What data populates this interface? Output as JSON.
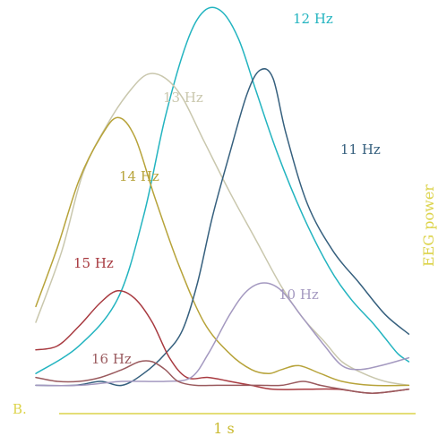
{
  "chart_data": {
    "type": "line",
    "panel_label": "B.",
    "ylabel": "EEG power",
    "scale_bar_label": "1 s",
    "x_range": [
      0,
      1.77
    ],
    "y_range": [
      0,
      1.0
    ],
    "grid": false,
    "legend": "none",
    "series": [
      {
        "name": "12 Hz",
        "color": "#23b4c0",
        "points": [
          [
            0,
            0.07
          ],
          [
            0.2,
            0.14
          ],
          [
            0.38,
            0.26
          ],
          [
            0.5,
            0.47
          ],
          [
            0.6,
            0.72
          ],
          [
            0.7,
            0.91
          ],
          [
            0.78,
            0.99
          ],
          [
            0.86,
            0.99
          ],
          [
            0.94,
            0.92
          ],
          [
            1.02,
            0.79
          ],
          [
            1.12,
            0.63
          ],
          [
            1.24,
            0.47
          ],
          [
            1.36,
            0.34
          ],
          [
            1.46,
            0.26
          ],
          [
            1.56,
            0.2
          ],
          [
            1.62,
            0.16
          ],
          [
            1.68,
            0.12
          ],
          [
            1.73,
            0.1
          ]
        ]
      },
      {
        "name": "13 Hz",
        "color": "#c9c7ad",
        "points": [
          [
            0,
            0.2
          ],
          [
            0.12,
            0.38
          ],
          [
            0.22,
            0.58
          ],
          [
            0.34,
            0.71
          ],
          [
            0.44,
            0.79
          ],
          [
            0.52,
            0.83
          ],
          [
            0.6,
            0.82
          ],
          [
            0.68,
            0.77
          ],
          [
            0.78,
            0.66
          ],
          [
            0.9,
            0.53
          ],
          [
            1.02,
            0.41
          ],
          [
            1.14,
            0.29
          ],
          [
            1.24,
            0.21
          ],
          [
            1.34,
            0.15
          ],
          [
            1.42,
            0.1
          ],
          [
            1.52,
            0.07
          ],
          [
            1.62,
            0.05
          ],
          [
            1.73,
            0.04
          ]
        ]
      },
      {
        "name": "14 Hz",
        "color": "#b7a33a",
        "points": [
          [
            0,
            0.24
          ],
          [
            0.1,
            0.39
          ],
          [
            0.2,
            0.56
          ],
          [
            0.3,
            0.67
          ],
          [
            0.38,
            0.72
          ],
          [
            0.46,
            0.67
          ],
          [
            0.55,
            0.52
          ],
          [
            0.66,
            0.35
          ],
          [
            0.78,
            0.2
          ],
          [
            0.9,
            0.12
          ],
          [
            1.0,
            0.08
          ],
          [
            1.08,
            0.07
          ],
          [
            1.14,
            0.08
          ],
          [
            1.22,
            0.09
          ],
          [
            1.32,
            0.07
          ],
          [
            1.42,
            0.05
          ],
          [
            1.56,
            0.04
          ],
          [
            1.73,
            0.04
          ]
        ]
      },
      {
        "name": "11 Hz",
        "color": "#36607e",
        "points": [
          [
            0,
            0.04
          ],
          [
            0.18,
            0.04
          ],
          [
            0.3,
            0.05
          ],
          [
            0.4,
            0.04
          ],
          [
            0.5,
            0.07
          ],
          [
            0.6,
            0.12
          ],
          [
            0.68,
            0.18
          ],
          [
            0.75,
            0.3
          ],
          [
            0.82,
            0.47
          ],
          [
            0.9,
            0.63
          ],
          [
            0.98,
            0.78
          ],
          [
            1.04,
            0.84
          ],
          [
            1.1,
            0.82
          ],
          [
            1.16,
            0.68
          ],
          [
            1.26,
            0.5
          ],
          [
            1.38,
            0.38
          ],
          [
            1.5,
            0.3
          ],
          [
            1.62,
            0.22
          ],
          [
            1.73,
            0.17
          ]
        ]
      },
      {
        "name": "15 Hz",
        "color": "#a83a40",
        "points": [
          [
            0,
            0.13
          ],
          [
            0.1,
            0.14
          ],
          [
            0.2,
            0.19
          ],
          [
            0.3,
            0.25
          ],
          [
            0.38,
            0.28
          ],
          [
            0.46,
            0.26
          ],
          [
            0.54,
            0.2
          ],
          [
            0.62,
            0.11
          ],
          [
            0.7,
            0.06
          ],
          [
            0.8,
            0.06
          ],
          [
            0.9,
            0.05
          ],
          [
            1.0,
            0.04
          ],
          [
            1.1,
            0.03
          ],
          [
            1.25,
            0.03
          ],
          [
            1.4,
            0.03
          ],
          [
            1.56,
            0.02
          ],
          [
            1.73,
            0.03
          ]
        ]
      },
      {
        "name": "10 Hz",
        "color": "#a499c0",
        "points": [
          [
            0,
            0.04
          ],
          [
            0.2,
            0.04
          ],
          [
            0.4,
            0.05
          ],
          [
            0.6,
            0.05
          ],
          [
            0.72,
            0.06
          ],
          [
            0.8,
            0.12
          ],
          [
            0.9,
            0.22
          ],
          [
            0.98,
            0.28
          ],
          [
            1.06,
            0.3
          ],
          [
            1.14,
            0.28
          ],
          [
            1.24,
            0.21
          ],
          [
            1.34,
            0.14
          ],
          [
            1.42,
            0.09
          ],
          [
            1.5,
            0.08
          ],
          [
            1.6,
            0.09
          ],
          [
            1.73,
            0.11
          ]
        ]
      },
      {
        "name": "16 Hz",
        "color": "#9a5a5e",
        "points": [
          [
            0,
            0.06
          ],
          [
            0.1,
            0.05
          ],
          [
            0.2,
            0.05
          ],
          [
            0.3,
            0.06
          ],
          [
            0.4,
            0.08
          ],
          [
            0.48,
            0.1
          ],
          [
            0.54,
            0.1
          ],
          [
            0.6,
            0.08
          ],
          [
            0.66,
            0.05
          ],
          [
            0.74,
            0.04
          ],
          [
            0.84,
            0.04
          ],
          [
            0.94,
            0.04
          ],
          [
            1.04,
            0.04
          ],
          [
            1.14,
            0.04
          ],
          [
            1.24,
            0.05
          ],
          [
            1.32,
            0.04
          ],
          [
            1.42,
            0.03
          ],
          [
            1.56,
            0.02
          ],
          [
            1.73,
            0.03
          ]
        ]
      }
    ]
  }
}
